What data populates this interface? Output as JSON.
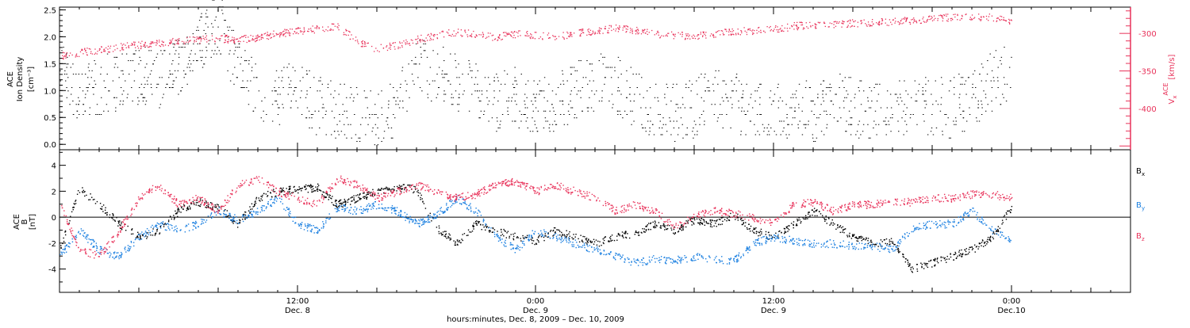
{
  "chart_data": [
    {
      "type": "scatter",
      "panel": "plasma",
      "left_ylabel": [
        "ACE",
        "Ion Density",
        "[cm⁻³]"
      ],
      "right_ylabel": [
        "V",
        "x",
        "ACE",
        "[km/s]"
      ],
      "ylim_left": [
        -0.1,
        2.55
      ],
      "ylim_right": [
        -455,
        -265
      ],
      "yticks_left": [
        0.0,
        0.5,
        1.0,
        1.5,
        2.0,
        2.5
      ],
      "ytick_labels_left": [
        "0.0",
        "0.5",
        "1.0",
        "1.5",
        "2.0",
        "2.5"
      ],
      "yticks_right": [
        -300,
        -350,
        -400
      ],
      "ytick_labels_right": [
        "-300",
        "-350",
        "-400"
      ],
      "series": [
        {
          "name": "Ion Density",
          "axis": "left",
          "color": "#000000",
          "x": [
            0,
            1,
            2,
            3,
            4,
            5,
            6,
            7,
            8,
            9,
            10,
            11,
            12,
            13,
            14,
            15,
            16,
            17,
            18,
            19,
            20,
            21,
            22,
            23,
            24,
            25,
            26,
            27,
            28,
            29,
            30,
            31,
            32,
            33,
            34,
            35,
            36,
            37,
            38,
            39,
            40,
            41,
            42,
            43,
            44,
            45,
            46,
            47,
            48
          ],
          "y": [
            1.4,
            0.9,
            1.1,
            1.2,
            1.3,
            1.2,
            1.5,
            1.9,
            2.3,
            1.4,
            1.0,
            0.9,
            1.1,
            0.7,
            0.6,
            0.6,
            0.5,
            0.7,
            1.5,
            1.3,
            1.2,
            1.0,
            0.8,
            0.9,
            0.7,
            0.7,
            1.0,
            1.2,
            1.1,
            0.9,
            0.6,
            0.6,
            0.7,
            0.9,
            0.8,
            0.6,
            0.6,
            0.7,
            0.6,
            0.8,
            0.7,
            0.6,
            0.6,
            0.8,
            0.7,
            0.7,
            0.9,
            1.2,
            1.4
          ]
        },
        {
          "name": "Vx",
          "axis": "right",
          "color": "#e8325a",
          "x": [
            0,
            1,
            2,
            3,
            4,
            5,
            6,
            7,
            8,
            9,
            10,
            11,
            12,
            13,
            14,
            15,
            16,
            17,
            18,
            19,
            20,
            21,
            22,
            23,
            24,
            25,
            26,
            27,
            28,
            29,
            30,
            31,
            32,
            33,
            34,
            35,
            36,
            37,
            38,
            39,
            40,
            41,
            42,
            43,
            44,
            45,
            46,
            47,
            48
          ],
          "y": [
            -330,
            -325,
            -322,
            -318,
            -315,
            -312,
            -310,
            -308,
            -306,
            -308,
            -305,
            -300,
            -296,
            -294,
            -290,
            -310,
            -320,
            -315,
            -308,
            -302,
            -298,
            -300,
            -305,
            -300,
            -302,
            -305,
            -298,
            -298,
            -292,
            -295,
            -300,
            -302,
            -303,
            -300,
            -297,
            -296,
            -294,
            -290,
            -288,
            -288,
            -286,
            -285,
            -284,
            -282,
            -280,
            -278,
            -277,
            -278,
            -285
          ]
        }
      ]
    },
    {
      "type": "scatter",
      "panel": "magnetic-field",
      "left_ylabel": [
        "ACE",
        "B",
        "[nT]"
      ],
      "ylim": [
        -5.8,
        5.2
      ],
      "yticks": [
        -4,
        -2,
        0,
        2,
        4
      ],
      "ytick_labels": [
        "-4",
        "-2",
        "0",
        "2",
        "4"
      ],
      "zero_line": true,
      "legend_position": "right",
      "series": [
        {
          "name": "Bx",
          "label": "B",
          "sub": "x",
          "color": "#000000",
          "x": [
            0,
            1,
            2,
            3,
            4,
            5,
            6,
            7,
            8,
            9,
            10,
            11,
            12,
            13,
            14,
            15,
            16,
            17,
            18,
            19,
            20,
            21,
            22,
            23,
            24,
            25,
            26,
            27,
            28,
            29,
            30,
            31,
            32,
            33,
            34,
            35,
            36,
            37,
            38,
            39,
            40,
            41,
            42,
            43,
            44,
            45,
            46,
            47,
            48
          ],
          "y": [
            -2.5,
            2.2,
            1.0,
            -0.5,
            -1.5,
            -1.0,
            0.5,
            1.2,
            0.8,
            -0.5,
            1.5,
            2.0,
            2.2,
            2.3,
            1.0,
            1.5,
            2.0,
            2.3,
            2.2,
            -0.8,
            -2.0,
            -0.5,
            -1.0,
            -1.5,
            -1.8,
            -1.0,
            -1.5,
            -2.0,
            -1.5,
            -1.2,
            -0.5,
            -1.0,
            -0.2,
            -0.5,
            0.2,
            -1.0,
            -1.5,
            -0.5,
            0.5,
            -0.5,
            -1.5,
            -2.0,
            -1.8,
            -4.0,
            -3.5,
            -3.0,
            -2.5,
            -1.5,
            0.8
          ]
        },
        {
          "name": "By",
          "label": "B",
          "sub": "y",
          "color": "#1a7fe0",
          "x": [
            0,
            1,
            2,
            3,
            4,
            5,
            6,
            7,
            8,
            9,
            10,
            11,
            12,
            13,
            14,
            15,
            16,
            17,
            18,
            19,
            20,
            21,
            22,
            23,
            24,
            25,
            26,
            27,
            28,
            29,
            30,
            31,
            32,
            33,
            34,
            35,
            36,
            37,
            38,
            39,
            40,
            41,
            42,
            43,
            44,
            45,
            46,
            47,
            48
          ],
          "y": [
            -3.0,
            -1.0,
            -2.5,
            -3.0,
            -1.5,
            -0.5,
            -1.0,
            -0.5,
            0.5,
            -0.2,
            0.5,
            1.5,
            -0.5,
            -1.0,
            0.8,
            0.5,
            1.0,
            0.5,
            -0.5,
            0.2,
            1.5,
            0.5,
            -1.5,
            -2.5,
            -1.0,
            -1.5,
            -2.0,
            -2.5,
            -3.0,
            -3.5,
            -3.2,
            -3.3,
            -3.0,
            -3.2,
            -3.3,
            -2.0,
            -1.5,
            -1.8,
            -2.0,
            -2.0,
            -2.2,
            -2.2,
            -2.5,
            -0.8,
            -0.5,
            -0.5,
            0.5,
            -1.0,
            -1.8
          ]
        },
        {
          "name": "Bz",
          "label": "B",
          "sub": "z",
          "color": "#e8325a",
          "x": [
            0,
            1,
            2,
            3,
            4,
            5,
            6,
            7,
            8,
            9,
            10,
            11,
            12,
            13,
            14,
            15,
            16,
            17,
            18,
            19,
            20,
            21,
            22,
            23,
            24,
            25,
            26,
            27,
            28,
            29,
            30,
            31,
            32,
            33,
            34,
            35,
            36,
            37,
            38,
            39,
            40,
            41,
            42,
            43,
            44,
            45,
            46,
            47,
            48
          ],
          "y": [
            1.0,
            -2.5,
            -3.0,
            -1.0,
            1.5,
            2.5,
            1.0,
            1.5,
            0.5,
            2.5,
            3.0,
            2.0,
            1.5,
            1.0,
            3.0,
            2.5,
            1.5,
            2.0,
            2.5,
            2.0,
            1.5,
            1.8,
            2.5,
            2.8,
            2.0,
            2.5,
            2.0,
            1.5,
            0.5,
            1.0,
            0.5,
            -0.8,
            0.2,
            0.5,
            0.3,
            0.0,
            -0.5,
            1.0,
            1.2,
            0.5,
            1.0,
            1.0,
            1.2,
            1.2,
            1.5,
            1.5,
            1.8,
            1.8,
            1.5
          ]
        }
      ]
    }
  ],
  "x_axis": {
    "ticks": [
      {
        "x": 12,
        "time": "12:00",
        "date": "Dec. 8"
      },
      {
        "x": 24,
        "time": "0:00",
        "date": "Dec. 9"
      },
      {
        "x": 36,
        "time": "12:00",
        "date": "Dec. 9"
      },
      {
        "x": 48,
        "time": "0:00",
        "date": "Dec.10"
      }
    ],
    "xlim": [
      0,
      54
    ],
    "xlabel": "hours:minutes, Dec. 8, 2009 – Dec. 10, 2009"
  }
}
